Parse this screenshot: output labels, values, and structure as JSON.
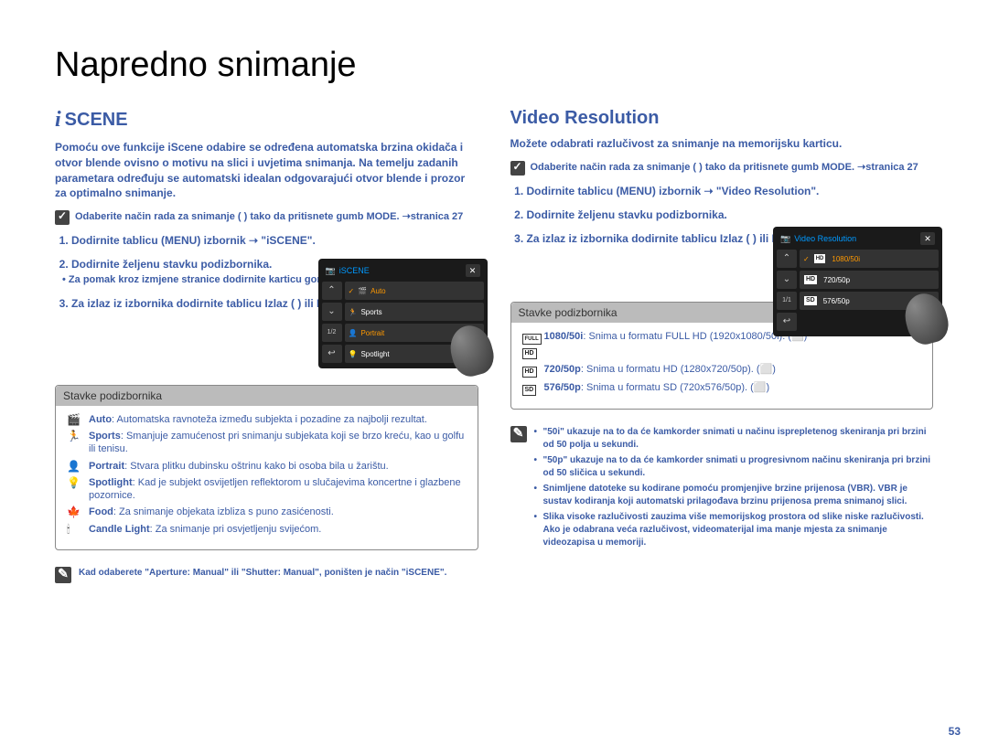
{
  "page_title": "Napredno snimanje",
  "page_number": "53",
  "left": {
    "heading": "SCENE",
    "intro": "Pomoću ove funkcije iScene odabire se određena automatska brzina okidača i otvor blende ovisno o motivu na slici i uvjetima snimanja. Na temelju zadanih parametara određuju se automatski idealan odgovarajući otvor blende i prozor za optimalno snimanje.",
    "precheck": "Odaberite način rada za snimanje ( ) tako da pritisnete gumb MODE. ➝stranica 27",
    "steps": [
      "Dodirnite tablicu (MENU) izbornik ➝ \"iSCENE\".",
      "Dodirnite željenu stavku podizbornika.",
      "Za izlaz iz izbornika dodirnite tablicu Izlaz ( ) ili Povratak ( )."
    ],
    "sub_bullet": "Za pomak kroz izmjene stranice dodirnite karticu gore ( ) / dolje ( ).",
    "cam": {
      "title": "iSCENE",
      "items": [
        "Auto",
        "Sports",
        "Portrait",
        "Spotlight"
      ],
      "page": "1/2"
    },
    "subitems_title": "Stavke podizbornika",
    "subitems": [
      {
        "icon": "🎬",
        "label": "Auto",
        "text": ": Automatska ravnoteža između subjekta i pozadine za najbolji rezultat."
      },
      {
        "icon": "🏃",
        "label": "Sports",
        "text": ": Smanjuje zamućenost pri snimanju subjekata koji se brzo kreću, kao u golfu ili tenisu."
      },
      {
        "icon": "👤",
        "label": "Portrait",
        "text": ": Stvara plitku dubinsku oštrinu kako bi osoba bila u žarištu."
      },
      {
        "icon": "💡",
        "label": "Spotlight",
        "text": ": Kad je subjekt osvijetljen reflektorom u slučajevima koncertne i glazbene pozornice."
      },
      {
        "icon": "🍁",
        "label": "Food",
        "text": ": Za snimanje objekata izbliza s puno zasićenosti."
      },
      {
        "icon": "🕯",
        "label": "Candle Light",
        "text": ": Za snimanje pri osvjetljenju svijećom."
      }
    ],
    "note": "Kad odaberete \"Aperture: Manual\" ili \"Shutter: Manual\", poništen je način \"iSCENE\"."
  },
  "right": {
    "heading": "Video Resolution",
    "intro": "Možete odabrati razlučivost za snimanje na memorijsku karticu.",
    "precheck": "Odaberite način rada za snimanje ( ) tako da pritisnete gumb MODE. ➝stranica 27",
    "steps": [
      "Dodirnite tablicu (MENU) izbornik ➝ \"Video Resolution\".",
      "Dodirnite željenu stavku podizbornika.",
      "Za izlaz iz izbornika dodirnite tablicu Izlaz ( ) ili Povratak ( )."
    ],
    "cam": {
      "title": "Video Resolution",
      "items": [
        "1080/50i",
        "720/50p",
        "576/50p"
      ],
      "page": "1/1"
    },
    "subitems_title": "Stavke podizbornika",
    "subitems": [
      {
        "badge": "FULL HD",
        "label": "1080/50i",
        "text": ": Snima u formatu FULL HD (1920x1080/50i). (⬜)"
      },
      {
        "badge": "HD",
        "label": "720/50p",
        "text": ": Snima u formatu HD (1280x720/50p). (⬜)"
      },
      {
        "badge": "SD",
        "label": "576/50p",
        "text": ": Snima u formatu SD (720x576/50p). (⬜)"
      }
    ],
    "notes": [
      "\"50i\" ukazuje na to da će kamkorder snimati u načinu isprepletenog skeniranja pri brzini od 50 polja u sekundi.",
      "\"50p\" ukazuje na to da će kamkorder snimati u progresivnom načinu skeniranja pri brzini od 50 sličica u sekundi.",
      "Snimljene datoteke su kodirane pomoću promjenjive brzine prijenosa (VBR). VBR je sustav kodiranja koji automatski prilagođava brzinu prijenosa prema snimanoj slici.",
      "Slika visoke razlučivosti zauzima više memorijskog prostora od slike niske razlučivosti. Ako je odabrana veća razlučivost, videomaterijal ima manje mjesta za snimanje videozapisa u memoriji."
    ]
  }
}
